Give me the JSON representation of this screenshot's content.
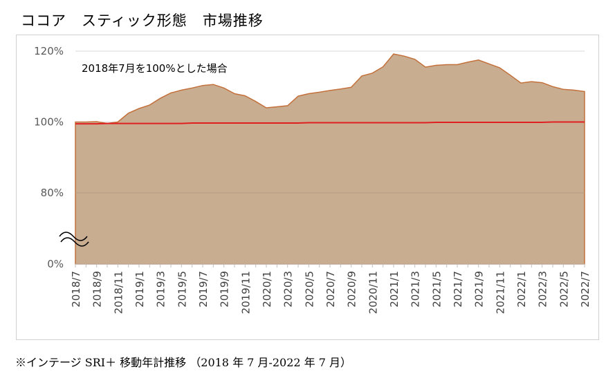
{
  "title": "ココア　スティック形態　市場推移",
  "footer": "※インテージ SRI＋ 移動年計推移 （2018 年 7 月-2022 年 7 月）",
  "chart_data": {
    "type": "area",
    "title": "ココア　スティック形態　市場推移",
    "annotation": "2018年7月を100%とした場合",
    "y_ticks": [
      {
        "value": 0,
        "label": "0%"
      },
      {
        "value": 80,
        "label": "80%"
      },
      {
        "value": 100,
        "label": "100%"
      },
      {
        "value": 120,
        "label": "120%"
      }
    ],
    "axis_break": true,
    "x_tick_labels": [
      "2018/7",
      "2018/9",
      "2018/11",
      "2019/1",
      "2019/3",
      "2019/5",
      "2019/7",
      "2019/9",
      "2019/11",
      "2020/1",
      "2020/3",
      "2020/5",
      "2020/7",
      "2020/9",
      "2020/11",
      "2021/1",
      "2021/3",
      "2021/5",
      "2021/7",
      "2021/9",
      "2021/11",
      "2022/1",
      "2022/3",
      "2022/5",
      "2022/7"
    ],
    "x": [
      "2018/7",
      "2018/8",
      "2018/9",
      "2018/10",
      "2018/11",
      "2018/12",
      "2019/1",
      "2019/2",
      "2019/3",
      "2019/4",
      "2019/5",
      "2019/6",
      "2019/7",
      "2019/8",
      "2019/9",
      "2019/10",
      "2019/11",
      "2019/12",
      "2020/1",
      "2020/2",
      "2020/3",
      "2020/4",
      "2020/5",
      "2020/6",
      "2020/7",
      "2020/8",
      "2020/9",
      "2020/10",
      "2020/11",
      "2020/12",
      "2021/1",
      "2021/2",
      "2021/3",
      "2021/4",
      "2021/5",
      "2021/6",
      "2021/7",
      "2021/8",
      "2021/9",
      "2021/10",
      "2021/11",
      "2021/12",
      "2022/1",
      "2022/2",
      "2022/3",
      "2022/4",
      "2022/5",
      "2022/6",
      "2022/7"
    ],
    "series": [
      {
        "values": [
          100.0,
          100.0,
          100.1,
          99.6,
          100.0,
          102.5,
          103.8,
          104.8,
          106.7,
          108.2,
          109.0,
          109.6,
          110.3,
          110.6,
          109.6,
          108.0,
          107.4,
          105.8,
          104.0,
          104.3,
          104.6,
          107.3,
          108.0,
          108.4,
          108.9,
          109.3,
          109.8,
          113.0,
          113.8,
          115.6,
          119.2,
          118.6,
          117.7,
          115.5,
          116.0,
          116.2,
          116.2,
          116.9,
          117.5,
          116.4,
          115.3,
          113.2,
          111.0,
          111.4,
          111.1,
          110.0,
          109.2,
          109.0,
          108.6
        ],
        "color": "#c4703a",
        "fill": "#c8ad91"
      },
      {
        "values": [
          99.5,
          99.5,
          99.5,
          99.6,
          99.6,
          99.6,
          99.6,
          99.6,
          99.6,
          99.6,
          99.6,
          99.7,
          99.7,
          99.7,
          99.7,
          99.7,
          99.7,
          99.7,
          99.7,
          99.7,
          99.7,
          99.7,
          99.8,
          99.8,
          99.8,
          99.8,
          99.8,
          99.8,
          99.8,
          99.8,
          99.8,
          99.8,
          99.8,
          99.8,
          99.9,
          99.9,
          99.9,
          99.9,
          99.9,
          99.9,
          99.9,
          99.9,
          99.9,
          99.9,
          99.9,
          100.0,
          100.0,
          100.0,
          100.0
        ],
        "color": "#e02020"
      }
    ],
    "grid": true
  }
}
